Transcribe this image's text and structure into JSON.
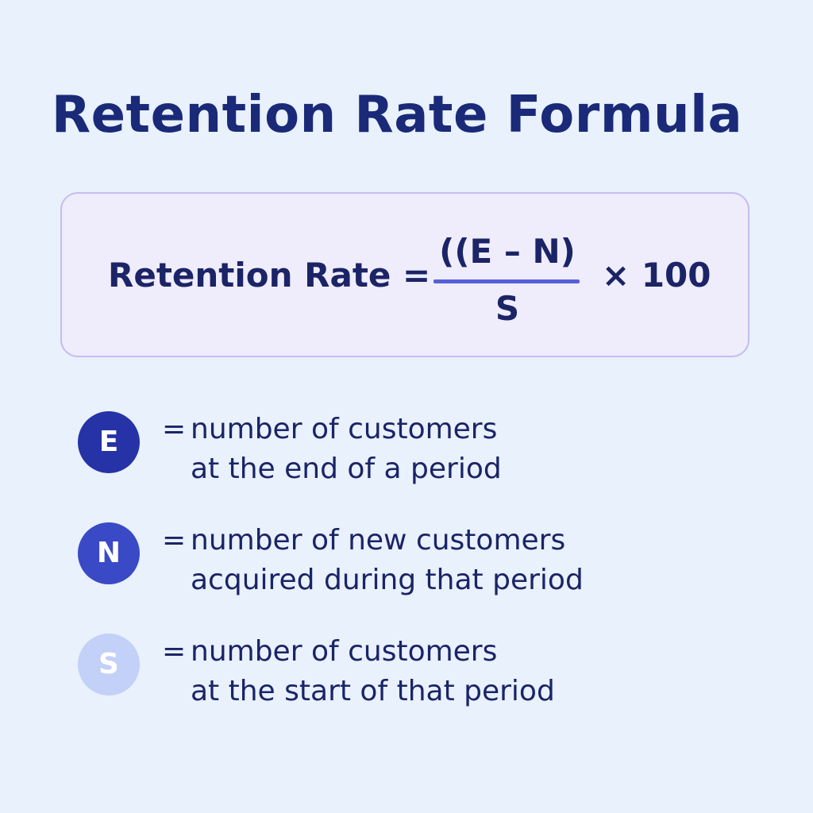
{
  "title": "Retention Rate Formula",
  "formula": {
    "lhs": "Retention Rate =",
    "numerator": "((E – N)",
    "denominator": "S",
    "multiplier": "× 100"
  },
  "definitions": [
    {
      "symbol": "E",
      "equals": "=",
      "line1": "number of customers",
      "line2": "at the end of a period",
      "color": "#2533a6"
    },
    {
      "symbol": "N",
      "equals": "=",
      "line1": "number of new customers",
      "line2": "acquired during that period",
      "color": "#3a49c6"
    },
    {
      "symbol": "S",
      "equals": "=",
      "line1": "number of customers",
      "line2": "at the start of that period",
      "color": "#c3d0f7"
    }
  ],
  "colors": {
    "background": "#e8f1fc",
    "title": "#1a2a78",
    "box_fill": "#efecfb",
    "box_border": "#c5bcf1",
    "fraction_bar": "#5560d6",
    "text": "#1b2466"
  }
}
